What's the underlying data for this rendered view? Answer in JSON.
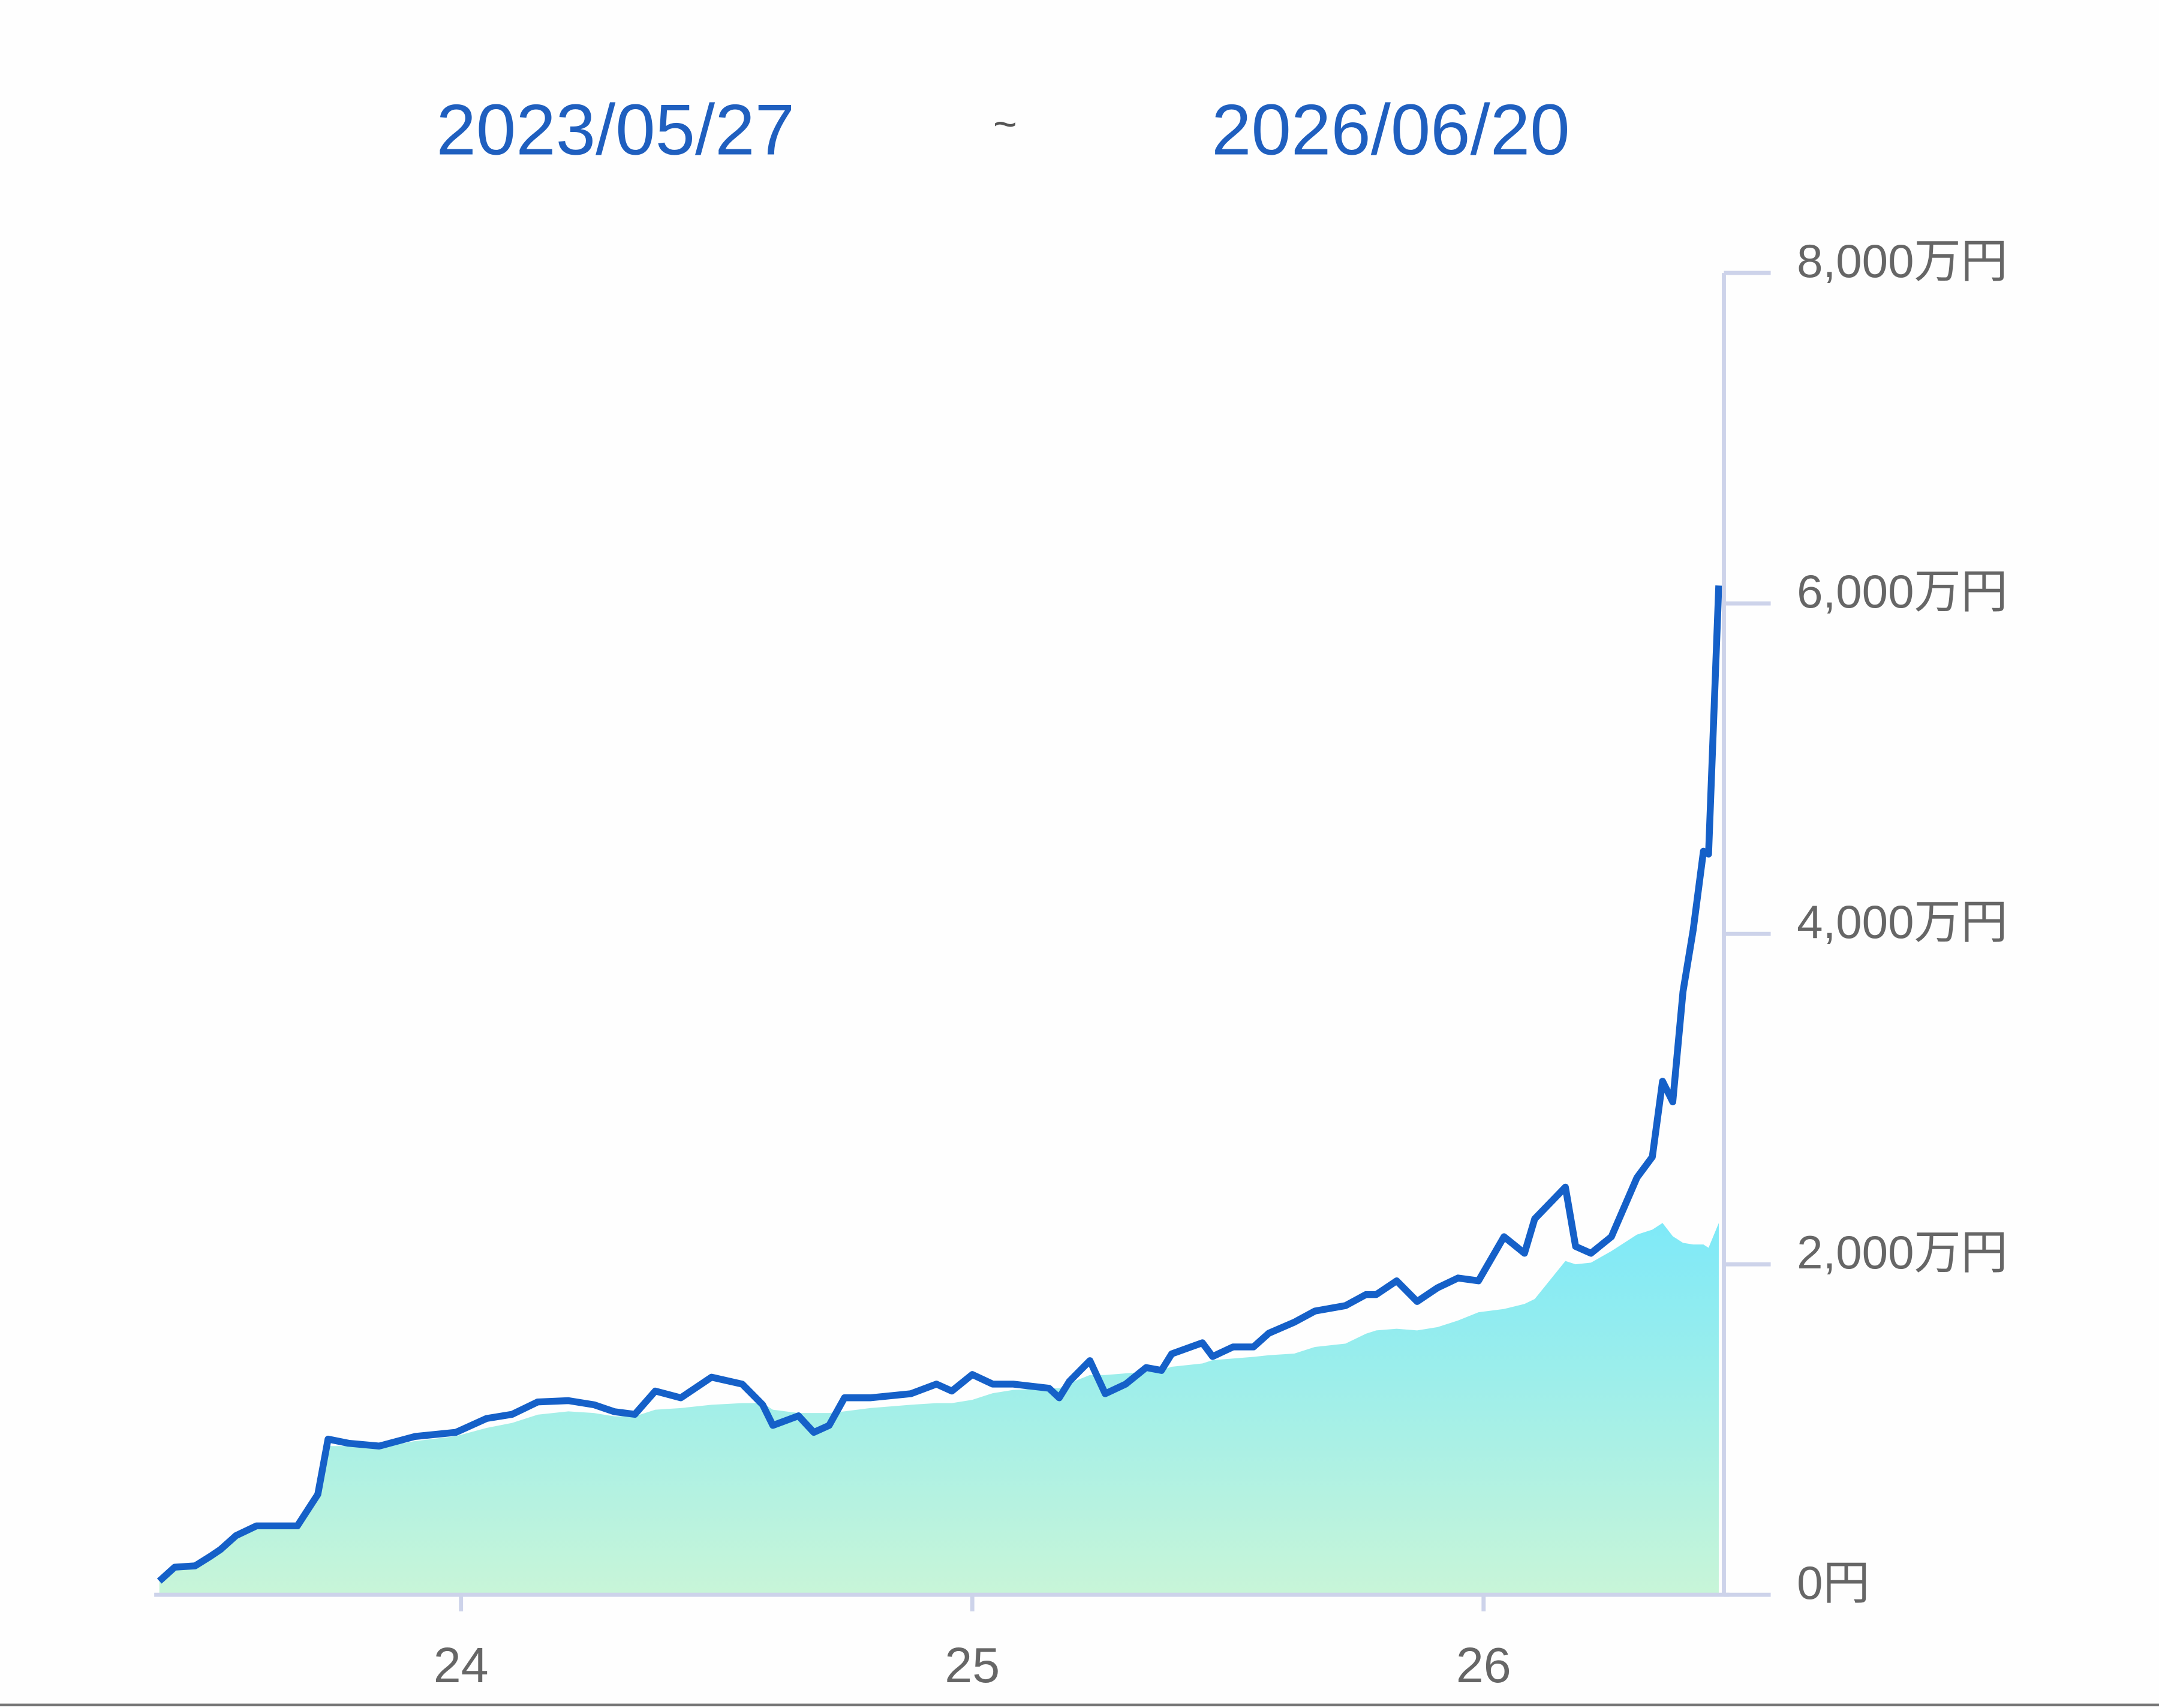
{
  "chart_data": {
    "type": "line-area",
    "start_date": "2023/05/27",
    "separator": "~",
    "end_date": "2026/06/20",
    "xlim": [
      2023.4,
      2026.47
    ],
    "xticks": [
      {
        "value": 2024,
        "label": "24"
      },
      {
        "value": 2025,
        "label": "25"
      },
      {
        "value": 2026,
        "label": "26"
      }
    ],
    "ylim": [
      0,
      8000
    ],
    "yticks": [
      {
        "value": 0,
        "label": "0円"
      },
      {
        "value": 2000,
        "label": "2,000万円"
      },
      {
        "value": 4000,
        "label": "4,000万円"
      },
      {
        "value": 6000,
        "label": "6,000万円"
      },
      {
        "value": 8000,
        "label": "8,000万円"
      }
    ],
    "x": [
      2023.41,
      2023.44,
      2023.48,
      2023.51,
      2023.53,
      2023.56,
      2023.6,
      2023.68,
      2023.72,
      2023.74,
      2023.78,
      2023.84,
      2023.91,
      2023.99,
      2024.05,
      2024.1,
      2024.15,
      2024.21,
      2024.26,
      2024.3,
      2024.34,
      2024.38,
      2024.43,
      2024.49,
      2024.55,
      2024.59,
      2024.61,
      2024.66,
      2024.69,
      2024.72,
      2024.75,
      2024.8,
      2024.88,
      2024.93,
      2024.96,
      2025.0,
      2025.04,
      2025.08,
      2025.15,
      2025.17,
      2025.19,
      2025.23,
      2025.26,
      2025.3,
      2025.34,
      2025.37,
      2025.39,
      2025.45,
      2025.47,
      2025.51,
      2025.55,
      2025.58,
      2025.63,
      2025.67,
      2025.73,
      2025.77,
      2025.79,
      2025.83,
      2025.87,
      2025.91,
      2025.95,
      2025.99,
      2026.04,
      2026.08,
      2026.1,
      2026.16,
      2026.18,
      2026.21,
      2026.25,
      2026.3,
      2026.33,
      2026.35,
      2026.37,
      2026.39,
      2026.41,
      2026.43,
      2026.44,
      2026.46
    ],
    "series": [
      {
        "color": "#86e6f3",
        "fill": "area",
        "values": [
          83,
          167,
          175,
          233,
          275,
          358,
          417,
          417,
          608,
          900,
          900,
          890,
          930,
          960,
          1010,
          1040,
          1090,
          1110,
          1100,
          1080,
          1080,
          1120,
          1130,
          1150,
          1160,
          1160,
          1120,
          1100,
          1100,
          1100,
          1110,
          1130,
          1150,
          1160,
          1160,
          1180,
          1220,
          1240,
          1250,
          1250,
          1280,
          1330,
          1330,
          1340,
          1350,
          1360,
          1380,
          1400,
          1420,
          1430,
          1440,
          1450,
          1460,
          1500,
          1520,
          1580,
          1600,
          1610,
          1600,
          1620,
          1660,
          1710,
          1730,
          1760,
          1790,
          2020,
          2000,
          2010,
          2080,
          2180,
          2210,
          2250,
          2170,
          2130,
          2120,
          2120,
          2100,
          2250
        ]
      },
      {
        "color": "#1560c8",
        "fill": "line",
        "values": [
          83,
          167,
          175,
          233,
          275,
          358,
          417,
          417,
          608,
          942,
          917,
          900,
          958,
          983,
          1067,
          1092,
          1167,
          1175,
          1150,
          1108,
          1092,
          1233,
          1192,
          1317,
          1275,
          1150,
          1025,
          1083,
          983,
          1025,
          1192,
          1192,
          1217,
          1275,
          1233,
          1333,
          1275,
          1275,
          1250,
          1192,
          1292,
          1417,
          1217,
          1275,
          1375,
          1358,
          1458,
          1525,
          1442,
          1500,
          1500,
          1583,
          1650,
          1717,
          1750,
          1817,
          1817,
          1900,
          1775,
          1858,
          1917,
          1900,
          2167,
          2067,
          2275,
          2467,
          2108,
          2067,
          2167,
          2525,
          2650,
          3108,
          2983,
          3650,
          4025,
          4500,
          4483,
          6108
        ]
      }
    ]
  }
}
